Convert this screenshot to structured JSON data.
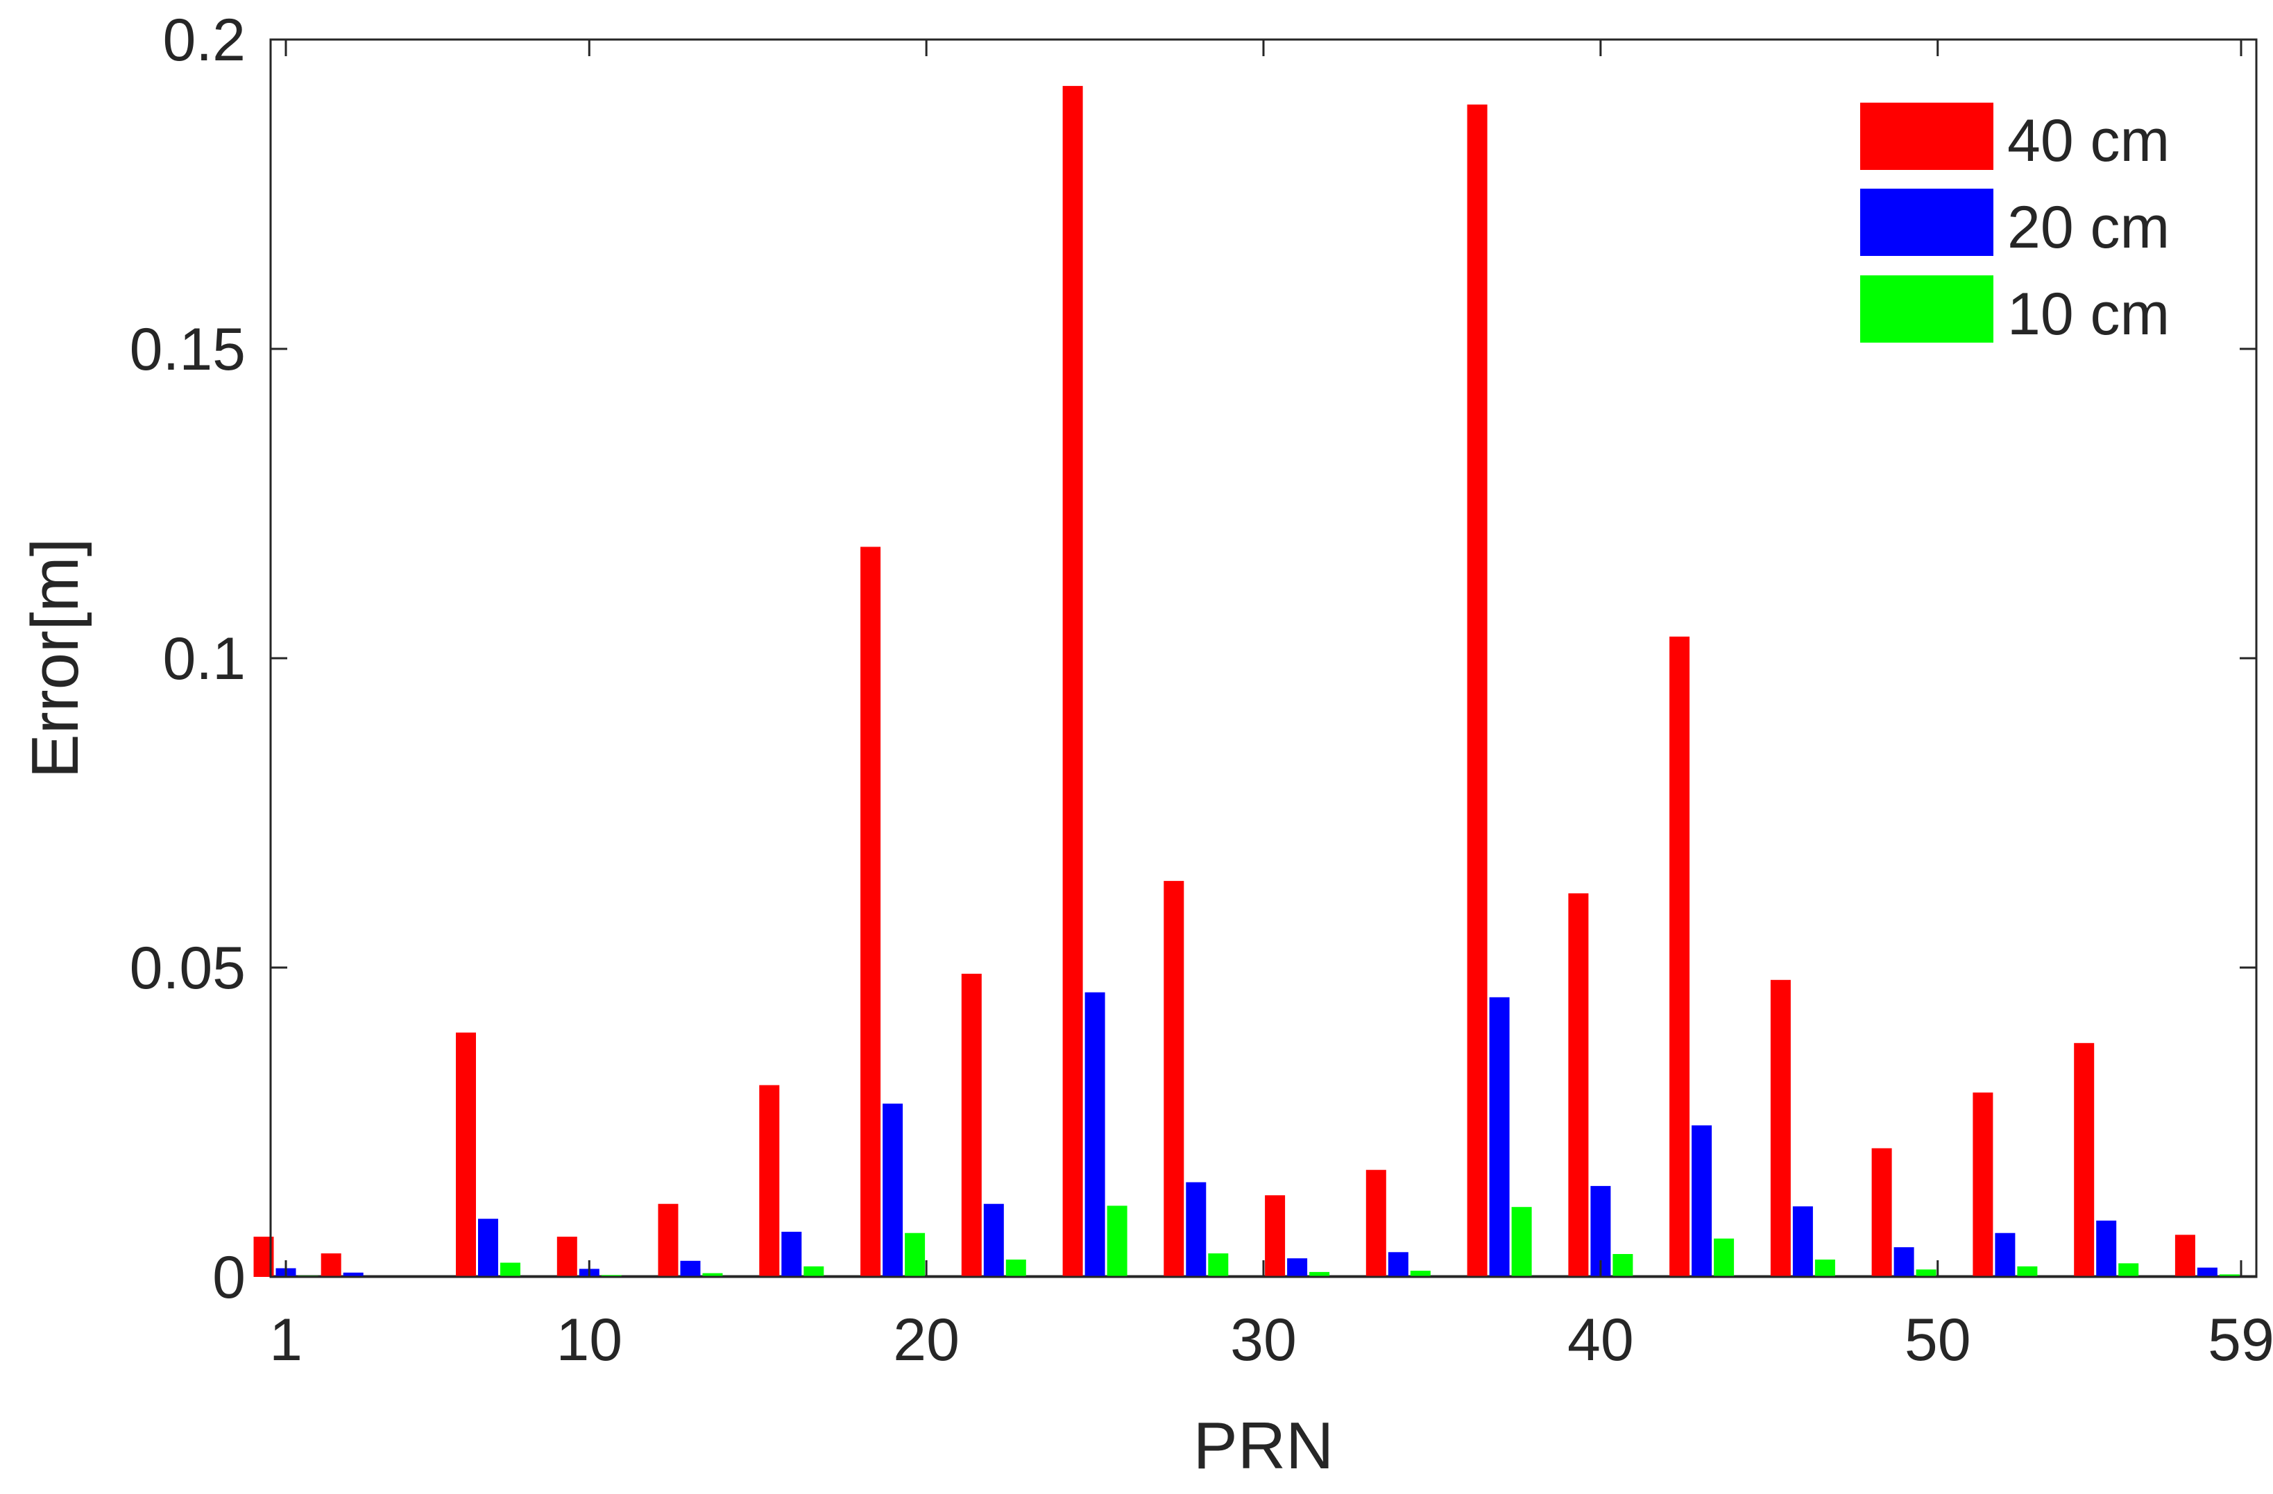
{
  "chart_data": {
    "type": "bar",
    "xlabel": "PRN",
    "ylabel": "Error[m]",
    "xlim": [
      1,
      59
    ],
    "ylim": [
      0,
      0.2
    ],
    "x_ticks": [
      1,
      10,
      20,
      30,
      40,
      50,
      59
    ],
    "x_tick_labels": [
      "1",
      "10",
      "20",
      "30",
      "40",
      "50",
      "59"
    ],
    "y_ticks": [
      0,
      0.05,
      0.1,
      0.15,
      0.2
    ],
    "y_tick_labels": [
      "0",
      "0.05",
      "0.1",
      "0.15",
      "0.2"
    ],
    "legend_position": "top-right",
    "x": [
      1,
      3,
      7,
      10,
      13,
      16,
      19,
      22,
      25,
      28,
      31,
      34,
      37,
      40,
      43,
      46,
      49,
      52,
      55,
      58
    ],
    "series": [
      {
        "name": "40 cm",
        "color": "#ff0000",
        "values": [
          0.0065,
          0.0038,
          0.0395,
          0.0065,
          0.0118,
          0.031,
          0.118,
          0.049,
          0.1925,
          0.064,
          0.0132,
          0.0173,
          0.1895,
          0.062,
          0.1035,
          0.048,
          0.0208,
          0.0298,
          0.0378,
          0.0068
        ]
      },
      {
        "name": "20 cm",
        "color": "#0000ff",
        "values": [
          0.0014,
          0.0007,
          0.0094,
          0.0013,
          0.0026,
          0.0073,
          0.028,
          0.0118,
          0.046,
          0.0153,
          0.003,
          0.004,
          0.0452,
          0.0147,
          0.0245,
          0.0114,
          0.0048,
          0.0071,
          0.0091,
          0.0015
        ]
      },
      {
        "name": "10 cm",
        "color": "#00ff00",
        "values": [
          0.0002,
          0.0001,
          0.0023,
          0.0003,
          0.0006,
          0.0017,
          0.0071,
          0.0028,
          0.0115,
          0.0038,
          0.0008,
          0.001,
          0.0113,
          0.0037,
          0.0062,
          0.0028,
          0.0012,
          0.0017,
          0.0022,
          0.0004
        ]
      }
    ]
  }
}
